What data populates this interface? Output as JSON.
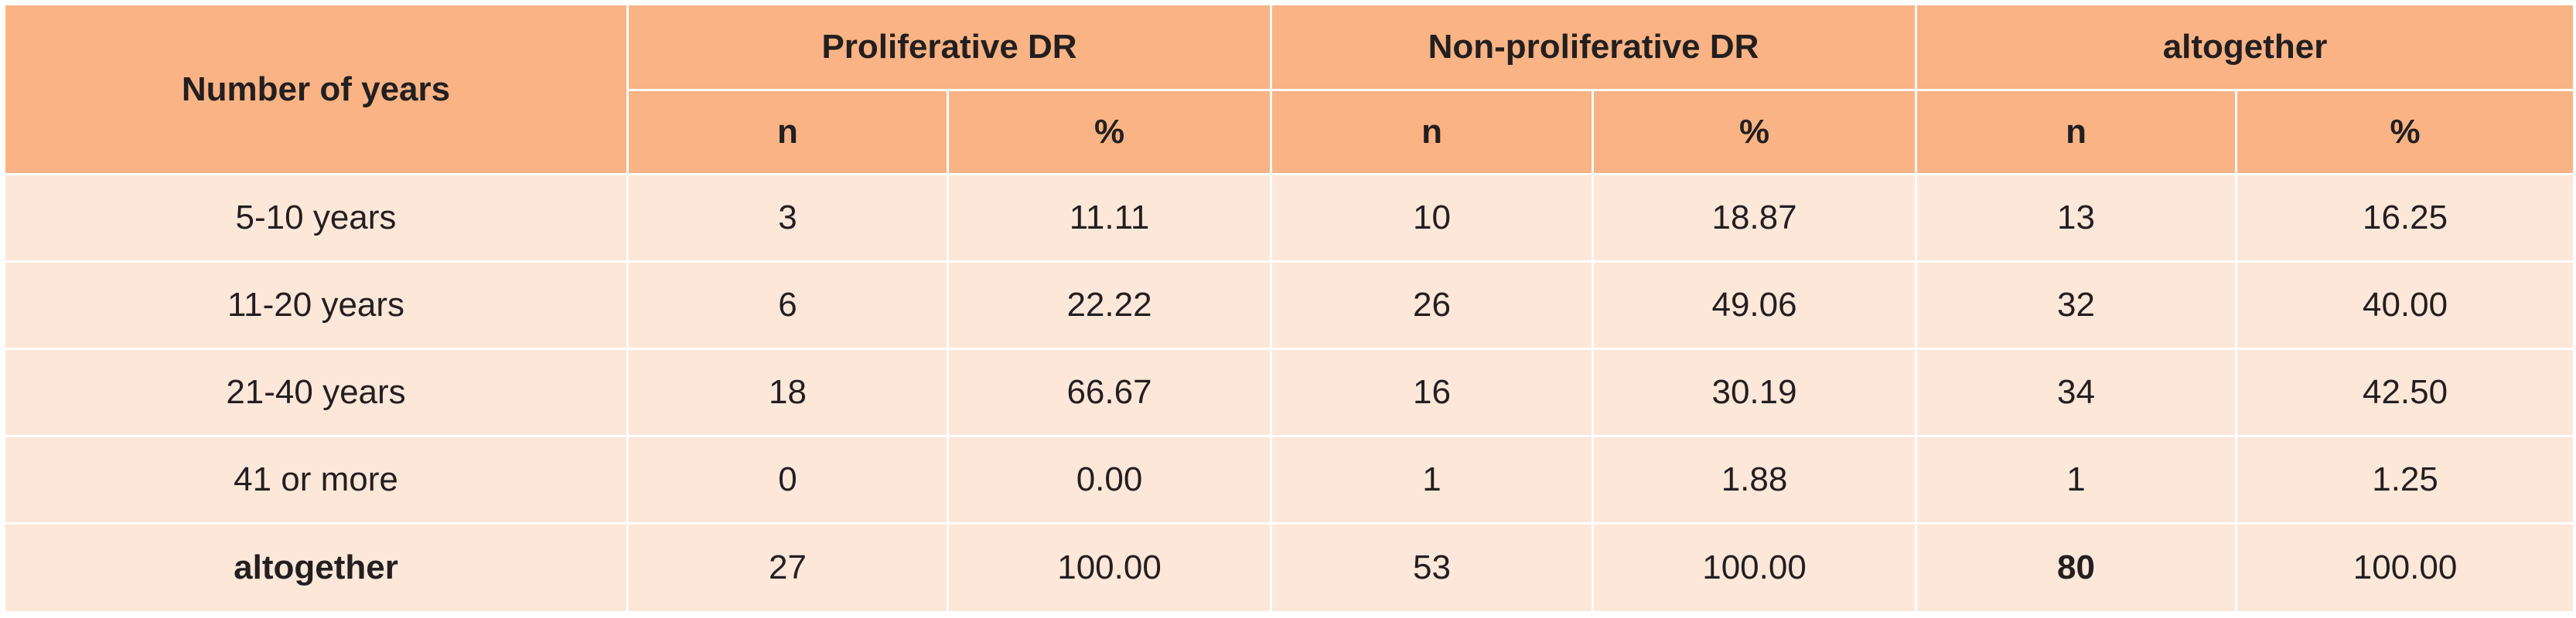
{
  "table": {
    "header": {
      "row_label": "Number of years",
      "groups": [
        "Proliferative DR",
        "Non-proliferative DR",
        "altogether"
      ],
      "subheaders": [
        "n",
        "%",
        "n",
        "%",
        "n",
        "%"
      ]
    },
    "rows": [
      {
        "label": "5-10 years",
        "cells": [
          "3",
          "11.11",
          "10",
          "18.87",
          "13",
          "16.25"
        ]
      },
      {
        "label": "11-20 years",
        "cells": [
          "6",
          "22.22",
          "26",
          "49.06",
          "32",
          "40.00"
        ]
      },
      {
        "label": "21-40 years",
        "cells": [
          "18",
          "66.67",
          "16",
          "30.19",
          "34",
          "42.50"
        ]
      },
      {
        "label": "41 or more",
        "cells": [
          "0",
          "0.00",
          "1",
          "1.88",
          "1",
          "1.25"
        ]
      },
      {
        "label": "altogether",
        "cells": [
          "27",
          "100.00",
          "53",
          "100.00",
          "80",
          "100.00"
        ]
      }
    ]
  },
  "colors": {
    "header_bg": "#f9b384",
    "body_bg": "#fde7d9",
    "grid": "#ffffff",
    "text": "#231f20"
  }
}
